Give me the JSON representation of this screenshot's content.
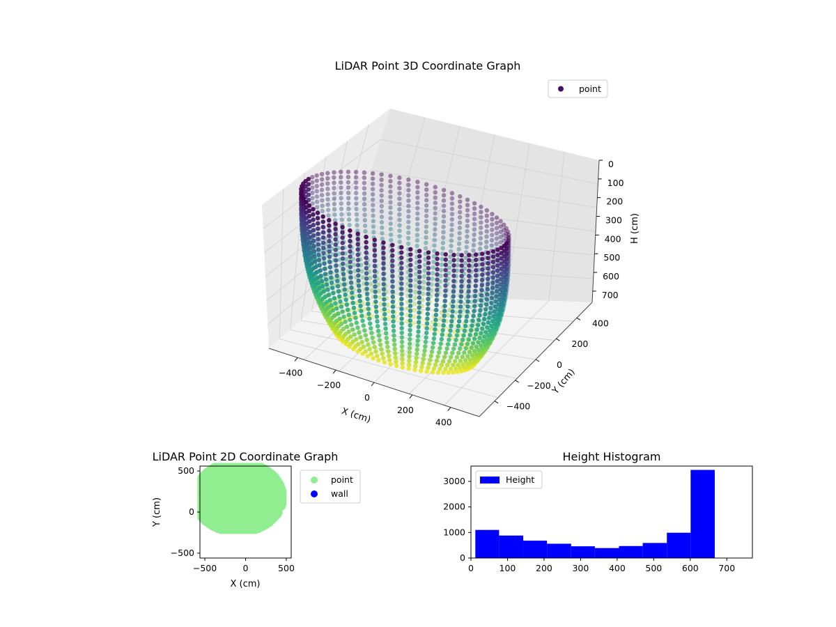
{
  "colors": {
    "wall_face": "#3e0a58",
    "rim_light": "#7fd4b8",
    "rim_dark": "#4b6ba3",
    "floor": "#d8e219",
    "floor2": "#a5db36",
    "point_legend": "#44106a",
    "green": "#90ee90",
    "blue": "#0000ff",
    "pane_left": "#ebebeb",
    "pane_right": "#e5e5e5",
    "pane_floor": "#f2f2f2"
  },
  "chart_data": [
    {
      "type": "scatter3d",
      "title": "LiDAR Point 3D Coordinate Graph",
      "xlabel": "X (cm)",
      "ylabel": "Y (cm)",
      "zlabel": "H (cm)",
      "xticks": [
        "−400",
        "−200",
        "0",
        "200",
        "400"
      ],
      "yticks": [
        "400",
        "200",
        "0",
        "−200",
        "−400"
      ],
      "zticks": [
        "0",
        "100",
        "200",
        "300",
        "400",
        "500",
        "600",
        "700"
      ],
      "xlim": [
        -550,
        550
      ],
      "ylim": [
        -550,
        550
      ],
      "zlim": [
        0,
        760
      ],
      "legend": [
        "point"
      ],
      "colormap": "viridis",
      "shape": "cylindrical room scan, radius ~520 cm, height ~720 cm"
    },
    {
      "type": "scatter",
      "title": "LiDAR Point 2D Coordinate Graph",
      "xlabel": "X (cm)",
      "ylabel": "Y (cm)",
      "xticks": [
        "−500",
        "0",
        "500"
      ],
      "yticks": [
        "500",
        "0",
        "−500"
      ],
      "xlim": [
        -560,
        560
      ],
      "ylim": [
        -560,
        560
      ],
      "legend": [
        "point",
        "wall"
      ],
      "series": [
        {
          "name": "point",
          "color": "#90ee90"
        },
        {
          "name": "wall",
          "color": "#0000ff"
        }
      ]
    },
    {
      "type": "bar",
      "title": "Height Histogram",
      "legend": [
        "Height"
      ],
      "xlim": [
        0,
        770
      ],
      "ylim": [
        0,
        3600
      ],
      "xticks": [
        "0",
        "100",
        "200",
        "300",
        "400",
        "500",
        "600",
        "700"
      ],
      "yticks": [
        "0",
        "1000",
        "2000",
        "3000"
      ],
      "bin_edges": [
        12,
        77,
        143,
        208,
        274,
        339,
        405,
        470,
        536,
        601,
        667
      ],
      "values": [
        1100,
        880,
        680,
        560,
        460,
        390,
        470,
        590,
        990,
        3450
      ]
    }
  ]
}
